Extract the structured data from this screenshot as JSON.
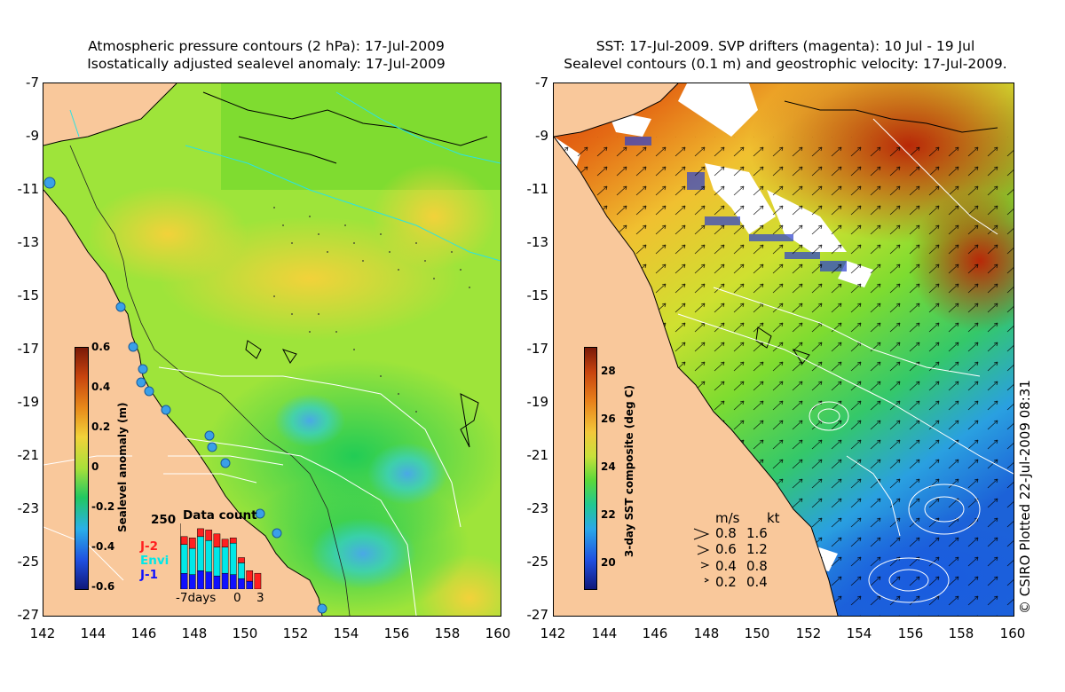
{
  "left_panel": {
    "title_line1": "Atmospheric pressure contours (2 hPa): 17-Jul-2009",
    "title_line2": "Isostatically adjusted sealevel anomaly: 17-Jul-2009",
    "colorbar": {
      "label": "Sealevel anomaly (m)",
      "ticks": [
        "0.6",
        "0.4",
        "0.2",
        "0",
        "-0.2",
        "-0.4",
        "-0.6"
      ],
      "range": [
        -0.6,
        0.6
      ]
    },
    "data_count": {
      "title": "Data count",
      "ymax_label": "250",
      "legend": [
        {
          "name": "J-2",
          "color": "#ff2020"
        },
        {
          "name": "Envi",
          "color": "#00e8e8"
        },
        {
          "name": "J-1",
          "color": "#1010ff"
        }
      ],
      "x_labels": [
        "-7days",
        "0",
        "3"
      ],
      "days": [
        -7,
        -6,
        -5,
        -4,
        -3,
        -2,
        -1,
        0,
        1,
        2
      ],
      "j1": [
        60,
        55,
        70,
        65,
        50,
        60,
        55,
        40,
        30,
        0
      ],
      "envi": [
        110,
        100,
        130,
        120,
        110,
        100,
        120,
        60,
        0,
        0
      ],
      "j2": [
        30,
        40,
        30,
        40,
        50,
        30,
        20,
        20,
        40,
        60
      ]
    }
  },
  "right_panel": {
    "title_line1": "SST: 17-Jul-2009. SVP drifters (magenta): 10 Jul - 19 Jul",
    "title_line2": "Sealevel contours (0.1 m) and geostrophic velocity: 17-Jul-2009.",
    "colorbar": {
      "label": "3-day SST composite (deg C)",
      "ticks": [
        "28",
        "26",
        "24",
        "22",
        "20"
      ],
      "range": [
        19,
        29
      ]
    },
    "velocity_legend": {
      "header_ms": "m/s",
      "header_kt": "kt",
      "rows": [
        {
          "ms": "0.8",
          "kt": "1.6"
        },
        {
          "ms": "0.6",
          "kt": "1.2"
        },
        {
          "ms": "0.4",
          "kt": "0.8"
        },
        {
          "ms": "0.2",
          "kt": "0.4"
        }
      ]
    }
  },
  "axes": {
    "x_ticks": [
      "142",
      "144",
      "146",
      "148",
      "150",
      "152",
      "154",
      "156",
      "158",
      "160"
    ],
    "y_ticks": [
      "-7",
      "-9",
      "-11",
      "-13",
      "-15",
      "-17",
      "-19",
      "-21",
      "-23",
      "-25",
      "-27"
    ],
    "lon_range": [
      142,
      160
    ],
    "lat_range": [
      -27,
      -7
    ]
  },
  "copyright": "© CSIRO Plotted 22-Jul-2009 08:31",
  "colors": {
    "land": "#f9c89b"
  }
}
